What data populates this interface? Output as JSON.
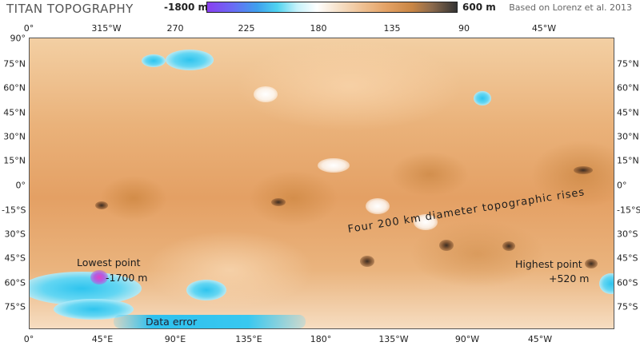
{
  "title": "TITAN TOPOGRAPHY",
  "credit": "Based on Lorenz et al. 2013",
  "scale": {
    "min_label": "-1800 m",
    "max_label": "600 m"
  },
  "top_axis": [
    "0°",
    "315°W",
    "270",
    "225",
    "180",
    "135",
    "90",
    "45°W"
  ],
  "bottom_axis": [
    "0°",
    "45°E",
    "90°E",
    "135°E",
    "180°",
    "135°W",
    "90°W",
    "45°W"
  ],
  "left_axis": [
    "90°",
    "75°N",
    "60°N",
    "45°N",
    "30°N",
    "15°N",
    "0°",
    "-15°S",
    "30°S",
    "45°S",
    "60°S",
    "75°S"
  ],
  "right_axis": [
    "75°N",
    "60°N",
    "45°N",
    "30°N",
    "15°N",
    "0°",
    "-15°S",
    "30°S",
    "45°S",
    "60°S",
    "75°S"
  ],
  "annotations": {
    "lowest_label": "Lowest point",
    "lowest_value": "-1700 m",
    "highest_label": "Highest point",
    "highest_value": "+520 m",
    "data_error": "Data error",
    "rises": "Four 200 km diameter topographic rises"
  }
}
